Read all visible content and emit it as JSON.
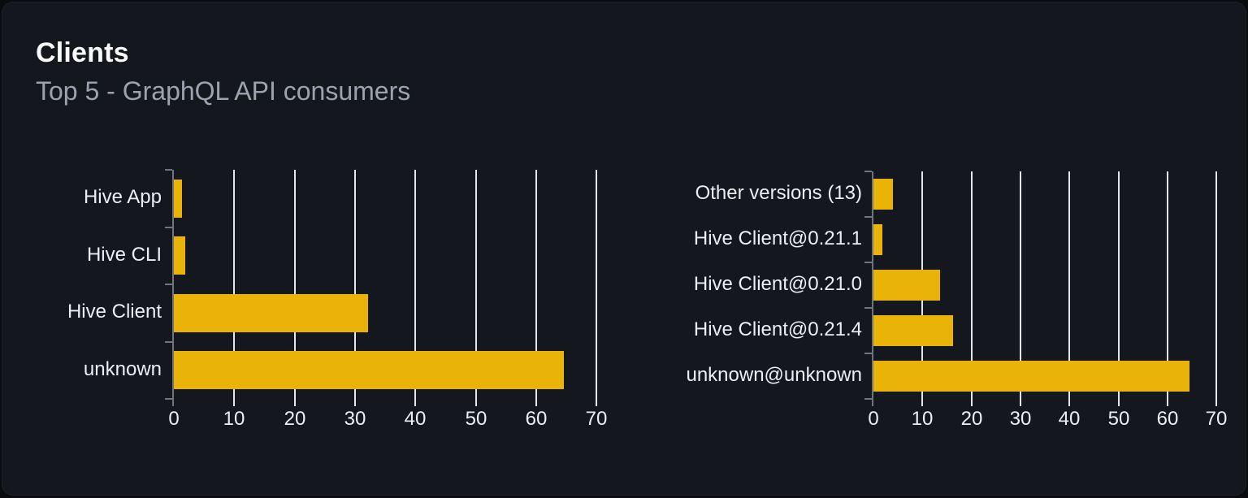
{
  "card": {
    "title": "Clients",
    "subtitle": "Top 5 - GraphQL API consumers"
  },
  "colors": {
    "bar": "#eab308",
    "card_bg": "#14171d",
    "page_bg": "#0a0b0e",
    "gridline": "#e3e6ed",
    "axis": "#70747e",
    "axis_label": "#eceef1",
    "title": "#fafafa",
    "subtitle": "#9ca3af"
  },
  "chart_data": [
    {
      "type": "bar",
      "orientation": "horizontal",
      "title": "",
      "xlabel": "",
      "ylabel": "",
      "categories": [
        "Hive App",
        "Hive CLI",
        "Hive Client",
        "unknown"
      ],
      "values": [
        1.4,
        1.9,
        32.1,
        64.6
      ],
      "xlim": [
        0,
        70
      ],
      "xticks": [
        0,
        10,
        20,
        30,
        40,
        50,
        60,
        70
      ],
      "grid": true,
      "legend": "none",
      "bar_color": "#eab308"
    },
    {
      "type": "bar",
      "orientation": "horizontal",
      "title": "",
      "xlabel": "",
      "ylabel": "",
      "categories": [
        "Other versions (13)",
        "Hive Client@0.21.1",
        "Hive Client@0.21.0",
        "Hive Client@0.21.4",
        "unknown@unknown"
      ],
      "values": [
        3.9,
        1.9,
        13.6,
        16.3,
        64.5
      ],
      "xlim": [
        0,
        70
      ],
      "xticks": [
        0,
        10,
        20,
        30,
        40,
        50,
        60,
        70
      ],
      "grid": true,
      "legend": "none",
      "bar_color": "#eab308"
    }
  ]
}
